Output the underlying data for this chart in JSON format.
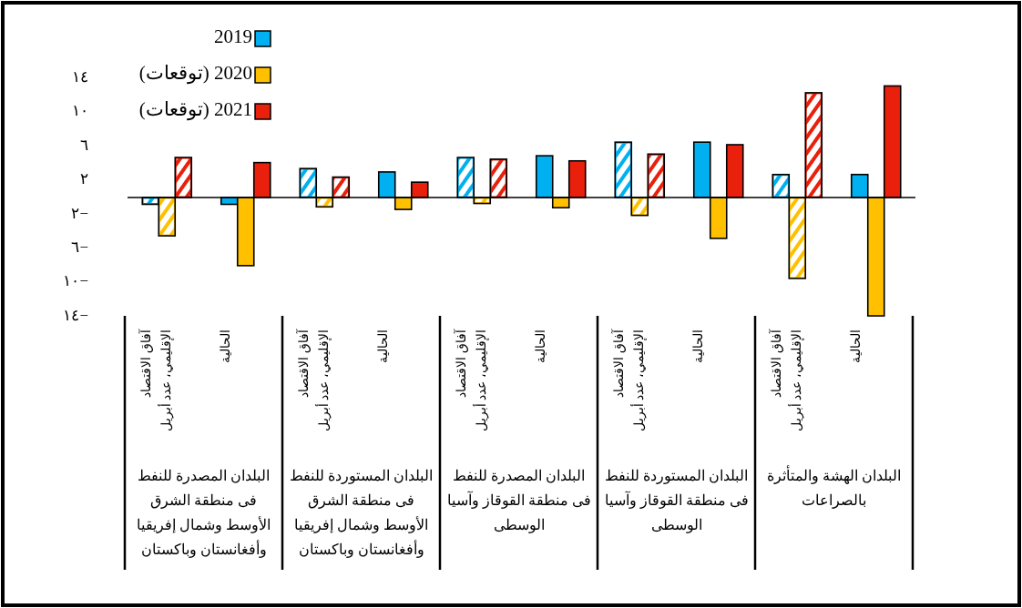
{
  "chart_data": {
    "type": "bar",
    "categories": [
      "آفاق الاقتصاد الإقليمي، عدد أبريل",
      "الحالية",
      "آفاق الاقتصاد الإقليمي، عدد أبريل",
      "الحالية",
      "آفاق الاقتصاد الإقليمي، عدد أبريل",
      "الحالية",
      "آفاق الاقتصاد الإقليمي، عدد أبريل",
      "الحالية",
      "آفاق الاقتصاد الإقليمي، عدد أبريل",
      "الحالية"
    ],
    "series": [
      {
        "name": "2019",
        "color": "#00b0f0",
        "values": [
          -0.8,
          -0.8,
          3.4,
          3.0,
          4.7,
          4.9,
          6.5,
          6.5,
          2.7,
          2.7
        ]
      },
      {
        "name": "2020 (توقعات)",
        "color": "#ffc000",
        "values": [
          -4.5,
          -8.0,
          -1.1,
          -1.4,
          -0.7,
          -1.2,
          -2.1,
          -4.8,
          -9.5,
          -13.9
        ]
      },
      {
        "name": "2021 (توقعات)",
        "color": "#e8200c",
        "values": [
          4.7,
          4.1,
          2.4,
          1.8,
          4.5,
          4.3,
          5.1,
          6.2,
          12.3,
          13.1
        ]
      }
    ],
    "ylim": [
      -14,
      14
    ],
    "yticks": [
      {
        "value": 14,
        "label": "١٤"
      },
      {
        "value": 10,
        "label": "١٠"
      },
      {
        "value": 6,
        "label": "٦"
      },
      {
        "value": 2,
        "label": "٢"
      },
      {
        "value": -2,
        "label": "٢−"
      },
      {
        "value": -6,
        "label": "٦−"
      },
      {
        "value": -10,
        "label": "١٠−"
      },
      {
        "value": -14,
        "label": "١٤−"
      }
    ],
    "legend": "top left",
    "grid": false,
    "annotations": [
      "البلدان المصدرة للنفط فى منطقة الشرق الأوسط وشمال إفريقيا وأفغانستان وباكستان",
      "البلدان المستوردة للنفط فى منطقة الشرق الأوسط وشمال إفريقيا وأفغانستان وباكستان",
      "البلدان المصدرة للنفط فى منطقة القوقاز وآسيا الوسطى",
      "البلدان المستوردة للنفط فى منطقة القوقاز وآسيا الوسطى",
      "البلدان الهشة والمتأثرة بالصراعات"
    ]
  }
}
